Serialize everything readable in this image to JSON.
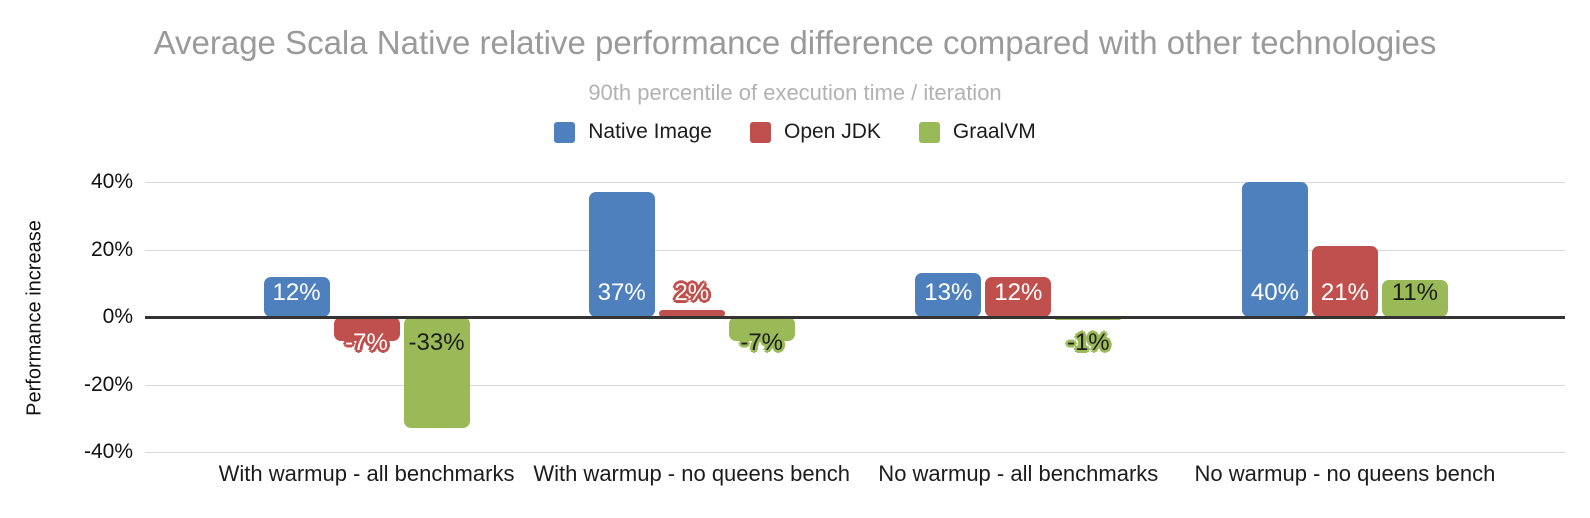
{
  "chart_data": {
    "type": "bar",
    "title": "Average Scala Native relative performance difference compared with other technologies",
    "subtitle": "90th percentile of execution time / iteration",
    "ylabel": "Performance increase",
    "ylim": [
      -40,
      40
    ],
    "grid": true,
    "legend_position": "top",
    "value_suffix": "%",
    "y_ticks": {
      "values": [
        40,
        20,
        0,
        -20,
        -40
      ],
      "labels": [
        "40%",
        "20%",
        "0%",
        "-20%",
        "-40%"
      ]
    },
    "categories": [
      "With warmup - all benchmarks",
      "With warmup - no queens bench",
      "No warmup - all benchmarks",
      "No warmup - no queens bench"
    ],
    "series": [
      {
        "name": "Native Image",
        "color": "#4e80bd",
        "label_text_color": "#ffffff",
        "values": [
          12,
          37,
          13,
          40
        ],
        "labels": [
          "12%",
          "37%",
          "13%",
          "40%"
        ]
      },
      {
        "name": "Open JDK",
        "color": "#c0504d",
        "label_text_color": "#ffffff",
        "values": [
          -7,
          2,
          12,
          21
        ],
        "labels": [
          "-7%",
          "2%",
          "12%",
          "21%"
        ]
      },
      {
        "name": "GraalVM",
        "color": "#9aba58",
        "label_text_color": "#1d1d1d",
        "values": [
          -33,
          -7,
          -1,
          11
        ],
        "labels": [
          "-33%",
          "-7%",
          "-1%",
          "11%"
        ]
      }
    ],
    "colors": {
      "title": "#9a9a9a",
      "subtitle": "#b2b2b2",
      "axis_line": "#333333",
      "gridline": "#d9d9d9"
    }
  }
}
